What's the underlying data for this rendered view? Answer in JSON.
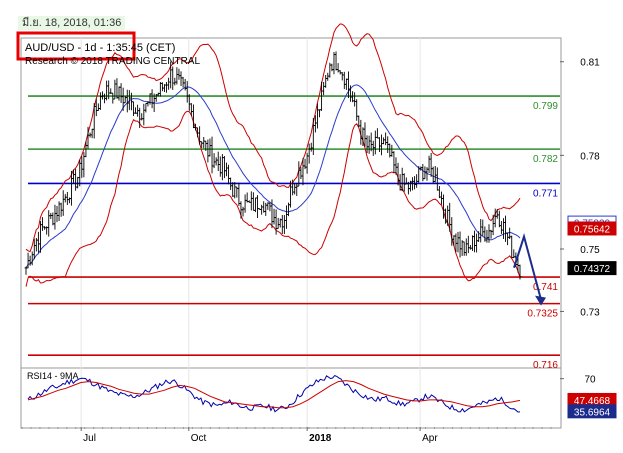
{
  "header": {
    "datetime": "มี.ย. 18, 2018, 01:36",
    "symbol_line": "AUD/USD - 1d - 1:35:45 (CET)",
    "research_line": "Research © 2018 TRADING CENTRAL"
  },
  "colors": {
    "candle": "#000000",
    "bollinger": "#cc0000",
    "ma": "#2b3bcc",
    "hline_green": "#2f8f2f",
    "hline_blue": "#0000cc",
    "hline_red": "#cc0000",
    "rsi": "#0000aa",
    "rsi_ma": "#cc0000",
    "arrow": "#1c2c8c",
    "symbol_box": "#e60000"
  },
  "chart_data": [
    {
      "type": "candlestick",
      "title": "AUD/USD - 1d",
      "x_ticks": [
        "Jul",
        "Oct",
        "2018",
        "Apr"
      ],
      "y_ticks": [
        0.81,
        0.78,
        0.75,
        0.73
      ],
      "ylim": [
        0.7122,
        0.8176
      ],
      "close_series": [
        0.744,
        0.751,
        0.756,
        0.759,
        0.762,
        0.766,
        0.77,
        0.774,
        0.784,
        0.793,
        0.8,
        0.801,
        0.8,
        0.798,
        0.796,
        0.794,
        0.796,
        0.799,
        0.802,
        0.806,
        0.804,
        0.799,
        0.792,
        0.785,
        0.781,
        0.778,
        0.776,
        0.77,
        0.766,
        0.764,
        0.764,
        0.766,
        0.762,
        0.759,
        0.76,
        0.77,
        0.775,
        0.78,
        0.79,
        0.799,
        0.81,
        0.81,
        0.805,
        0.797,
        0.788,
        0.782,
        0.783,
        0.784,
        0.779,
        0.772,
        0.77,
        0.77,
        0.775,
        0.776,
        0.772,
        0.763,
        0.756,
        0.752,
        0.749,
        0.753,
        0.755,
        0.756,
        0.762,
        0.756,
        0.749,
        0.744
      ],
      "horizontal_levels": [
        {
          "value": 0.799,
          "label": "0.799",
          "color": "green"
        },
        {
          "value": 0.782,
          "label": "0.782",
          "color": "green"
        },
        {
          "value": 0.771,
          "label": "0.771",
          "color": "blue"
        },
        {
          "value": 0.741,
          "label": "0.741",
          "color": "red"
        },
        {
          "value": 0.7325,
          "label": "0.7325",
          "color": "red"
        },
        {
          "value": 0.716,
          "label": "0.716",
          "color": "red"
        }
      ],
      "price_tags": [
        {
          "value": 0.7583,
          "label": "0.75830",
          "kind": "ma"
        },
        {
          "value": 0.75642,
          "label": "0.75642",
          "kind": "bollinger"
        },
        {
          "value": 0.74372,
          "label": "0.74372",
          "kind": "last"
        }
      ],
      "forecast_path": [
        [
          0.744,
          0.754
        ],
        [
          0.754,
          0.7325
        ]
      ]
    },
    {
      "type": "line",
      "title": "RSI14 - 9MA",
      "y_ticks": [
        70
      ],
      "ylim": [
        20,
        80
      ],
      "series": [
        {
          "name": "RSI14",
          "values": [
            48,
            52,
            56,
            60,
            62,
            66,
            68,
            70,
            68,
            64,
            60,
            56,
            54,
            52,
            52,
            54,
            58,
            62,
            66,
            68,
            64,
            58,
            52,
            46,
            44,
            42,
            44,
            46,
            42,
            40,
            40,
            42,
            40,
            38,
            40,
            46,
            54,
            60,
            66,
            70,
            72,
            70,
            64,
            58,
            54,
            50,
            48,
            50,
            48,
            44,
            44,
            46,
            50,
            52,
            48,
            44,
            40,
            38,
            38,
            42,
            44,
            46,
            50,
            46,
            40,
            35.6964
          ]
        },
        {
          "name": "9MA",
          "values": [
            48,
            50,
            52,
            55,
            58,
            60,
            63,
            66,
            67,
            66,
            64,
            62,
            59,
            57,
            55,
            54,
            54,
            56,
            58,
            61,
            63,
            62,
            60,
            56,
            52,
            49,
            46,
            45,
            44,
            43,
            42,
            41,
            41,
            40,
            40,
            41,
            44,
            48,
            53,
            58,
            63,
            67,
            68,
            67,
            64,
            60,
            57,
            54,
            52,
            50,
            48,
            47,
            47,
            48,
            48,
            47,
            46,
            44,
            42,
            41,
            41,
            42,
            44,
            45,
            46,
            47.4668
          ]
        }
      ],
      "value_tags": [
        {
          "value": 47.4668,
          "label": "47.4668",
          "kind": "ma"
        },
        {
          "value": 35.6964,
          "label": "35.6964",
          "kind": "rsi"
        }
      ]
    }
  ]
}
